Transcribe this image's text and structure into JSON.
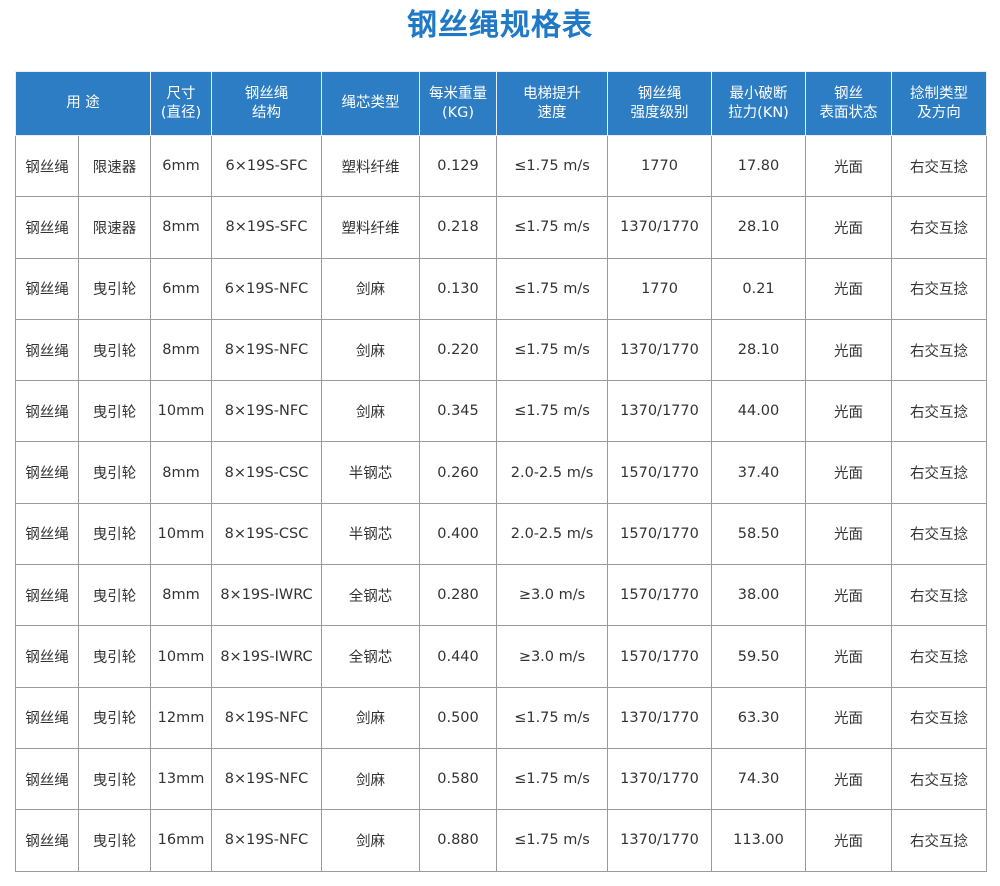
{
  "title": "钢丝绳规格表",
  "header": {
    "purpose": "用 途",
    "size": [
      "尺寸",
      "(直径)"
    ],
    "structure": [
      "钢丝绳",
      "结构"
    ],
    "core": "绳芯类型",
    "weight": [
      "每米重量",
      "(KG)"
    ],
    "speed": [
      "电梯提升",
      "速度"
    ],
    "strength": [
      "钢丝绳",
      "强度级别"
    ],
    "force": [
      "最小破断",
      "拉力(KN)"
    ],
    "surface": [
      "钢丝",
      "表面状态"
    ],
    "twist": [
      "捻制类型",
      "及方向"
    ]
  },
  "rows": [
    {
      "type": "钢丝绳",
      "use": "限速器",
      "size": "6mm",
      "structure": "6×19S-SFC",
      "core": "塑料纤维",
      "weight": "0.129",
      "speed": "≤1.75 m/s",
      "strength": "1770",
      "force": "17.80",
      "surface": "光面",
      "twist": "右交互捻"
    },
    {
      "type": "钢丝绳",
      "use": "限速器",
      "size": "8mm",
      "structure": "8×19S-SFC",
      "core": "塑料纤维",
      "weight": "0.218",
      "speed": "≤1.75 m/s",
      "strength": "1370/1770",
      "force": "28.10",
      "surface": "光面",
      "twist": "右交互捻"
    },
    {
      "type": "钢丝绳",
      "use": "曳引轮",
      "size": "6mm",
      "structure": "6×19S-NFC",
      "core": "剑麻",
      "weight": "0.130",
      "speed": "≤1.75 m/s",
      "strength": "1770",
      "force": "0.21",
      "surface": "光面",
      "twist": "右交互捻"
    },
    {
      "type": "钢丝绳",
      "use": "曳引轮",
      "size": "8mm",
      "structure": "8×19S-NFC",
      "core": "剑麻",
      "weight": "0.220",
      "speed": "≤1.75 m/s",
      "strength": "1370/1770",
      "force": "28.10",
      "surface": "光面",
      "twist": "右交互捻"
    },
    {
      "type": "钢丝绳",
      "use": "曳引轮",
      "size": "10mm",
      "structure": "8×19S-NFC",
      "core": "剑麻",
      "weight": "0.345",
      "speed": "≤1.75 m/s",
      "strength": "1370/1770",
      "force": "44.00",
      "surface": "光面",
      "twist": "右交互捻"
    },
    {
      "type": "钢丝绳",
      "use": "曳引轮",
      "size": "8mm",
      "structure": "8×19S-CSC",
      "core": "半钢芯",
      "weight": "0.260",
      "speed": "2.0-2.5 m/s",
      "strength": "1570/1770",
      "force": "37.40",
      "surface": "光面",
      "twist": "右交互捻"
    },
    {
      "type": "钢丝绳",
      "use": "曳引轮",
      "size": "10mm",
      "structure": "8×19S-CSC",
      "core": "半钢芯",
      "weight": "0.400",
      "speed": "2.0-2.5 m/s",
      "strength": "1570/1770",
      "force": "58.50",
      "surface": "光面",
      "twist": "右交互捻"
    },
    {
      "type": "钢丝绳",
      "use": "曳引轮",
      "size": "8mm",
      "structure": "8×19S-IWRC",
      "core": "全钢芯",
      "weight": "0.280",
      "speed": "≥3.0 m/s",
      "strength": "1570/1770",
      "force": "38.00",
      "surface": "光面",
      "twist": "右交互捻"
    },
    {
      "type": "钢丝绳",
      "use": "曳引轮",
      "size": "10mm",
      "structure": "8×19S-IWRC",
      "core": "全钢芯",
      "weight": "0.440",
      "speed": "≥3.0 m/s",
      "strength": "1570/1770",
      "force": "59.50",
      "surface": "光面",
      "twist": "右交互捻"
    },
    {
      "type": "钢丝绳",
      "use": "曳引轮",
      "size": "12mm",
      "structure": "8×19S-NFC",
      "core": "剑麻",
      "weight": "0.500",
      "speed": "≤1.75 m/s",
      "strength": "1370/1770",
      "force": "63.30",
      "surface": "光面",
      "twist": "右交互捻"
    },
    {
      "type": "钢丝绳",
      "use": "曳引轮",
      "size": "13mm",
      "structure": "8×19S-NFC",
      "core": "剑麻",
      "weight": "0.580",
      "speed": "≤1.75 m/s",
      "strength": "1370/1770",
      "force": "74.30",
      "surface": "光面",
      "twist": "右交互捻"
    },
    {
      "type": "钢丝绳",
      "use": "曳引轮",
      "size": "16mm",
      "structure": "8×19S-NFC",
      "core": "剑麻",
      "weight": "0.880",
      "speed": "≤1.75 m/s",
      "strength": "1370/1770",
      "force": "113.00",
      "surface": "光面",
      "twist": "右交互捻"
    }
  ]
}
